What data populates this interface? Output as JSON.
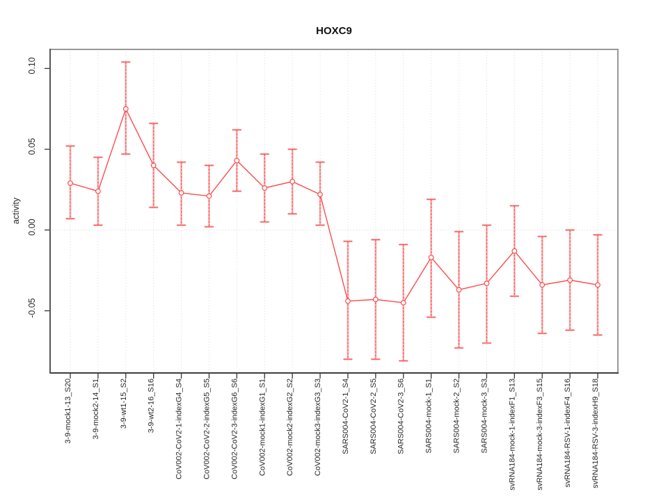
{
  "window": {
    "background": "#ffffff"
  },
  "chart_data": {
    "type": "line",
    "subtype": "points-with-error-bars",
    "title": "HOXC9",
    "xlabel": "",
    "ylabel": "activity",
    "legend": "none",
    "categories": [
      "3-9-mock1-13_S20",
      "3-9-mock2-14_S1",
      "3-9-wt1-15_S2",
      "3-9-wt2-16_S16",
      "CoV002-CoV2-1-indexG4_S4",
      "CoV002-CoV2-2-indexG5_S5",
      "CoV002-CoV2-3-indexG6_S6",
      "CoV002-mock1-indexG1_S1",
      "CoV002-mock2-indexG2_S2",
      "CoV002-mock3-indexG3_S3",
      "SARS004-CoV2-1_S4",
      "SARS004-CoV2-2_S5",
      "SARS004-CoV2-3_S6",
      "SARS004-mock-1_S1",
      "SARS004-mock-2_S2",
      "SARS004-mock-3_S3",
      "svRNA184-mock-1-indexF1_S13",
      "svRNA184-mock-3-indexF3_S15",
      "svRNA184-RSV-1-indexF4_S16",
      "svRNA184-RSV-3-indexH9_S18"
    ],
    "series": [
      {
        "name": "activity",
        "values": [
          0.029,
          0.024,
          0.075,
          0.04,
          0.023,
          0.021,
          0.043,
          0.026,
          0.03,
          0.022,
          -0.044,
          -0.043,
          -0.045,
          -0.017,
          -0.037,
          -0.033,
          -0.013,
          -0.034,
          -0.031,
          -0.034
        ],
        "lower": [
          0.007,
          0.003,
          0.047,
          0.014,
          0.003,
          0.002,
          0.024,
          0.005,
          0.01,
          0.003,
          -0.08,
          -0.08,
          -0.081,
          -0.054,
          -0.073,
          -0.07,
          -0.041,
          -0.064,
          -0.062,
          -0.065
        ],
        "upper": [
          0.052,
          0.045,
          0.104,
          0.066,
          0.042,
          0.04,
          0.062,
          0.047,
          0.05,
          0.042,
          -0.007,
          -0.006,
          -0.009,
          0.019,
          -0.001,
          0.003,
          0.015,
          -0.004,
          0.0,
          -0.003
        ]
      }
    ],
    "yticks": {
      "values": [
        0.1,
        0.05,
        0.0,
        -0.05
      ],
      "labels": [
        "0.10",
        "0.05",
        "0.00",
        "-0.05"
      ]
    },
    "ylim": [
      -0.0885,
      0.1118
    ],
    "grid": {
      "vertical_gridlines": true,
      "horizontal_zero_line": true,
      "style": "dotted"
    },
    "colors": {
      "point": "#fb4b4b",
      "line": "#fb4b4b",
      "errorbar_solid": "#fbabab",
      "errorbar_dash": "#f75252",
      "grid": "#d9d9d9",
      "box_border": "#979797",
      "axis_bottom": "#3d3d3d",
      "axis_left": "#565656",
      "tick": "#333333",
      "text": "#262626"
    }
  }
}
